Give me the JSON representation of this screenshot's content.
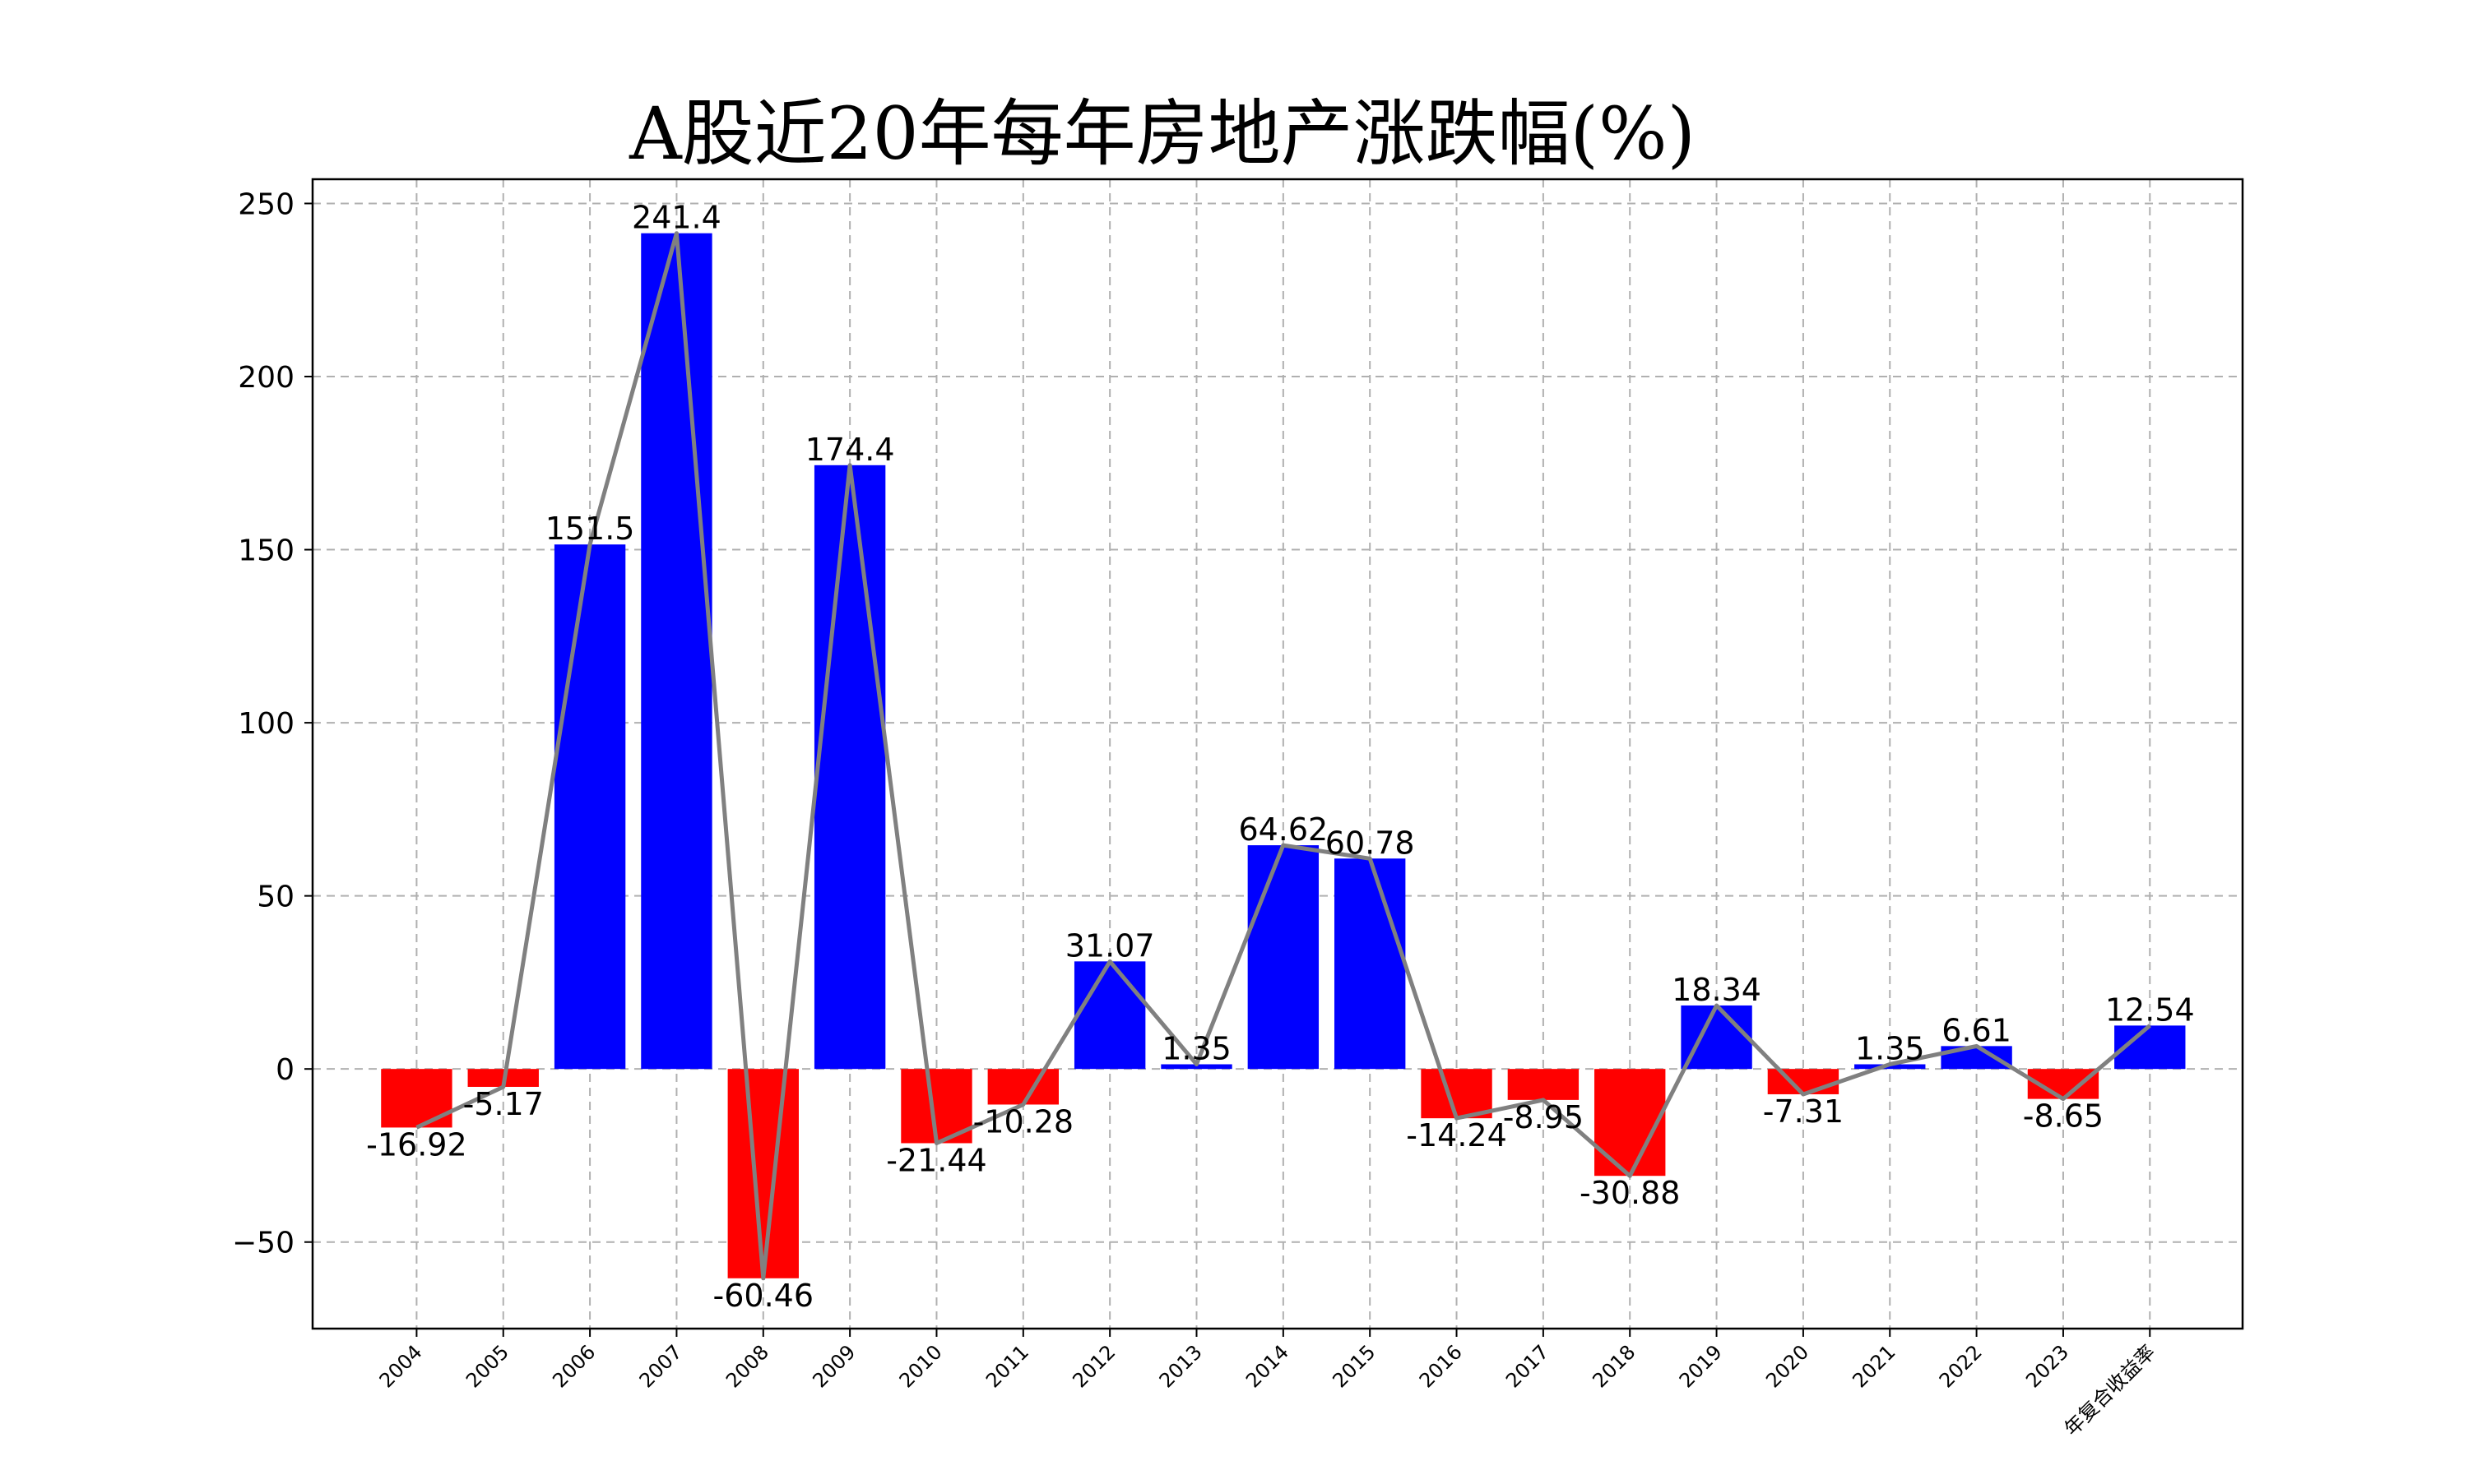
{
  "chart_data": {
    "type": "bar",
    "title": "A股近20年每年房地产涨跌幅(%)",
    "xlabel": "",
    "ylabel": "",
    "categories": [
      "2004",
      "2005",
      "2006",
      "2007",
      "2008",
      "2009",
      "2010",
      "2011",
      "2012",
      "2013",
      "2014",
      "2015",
      "2016",
      "2017",
      "2018",
      "2019",
      "2020",
      "2021",
      "2022",
      "2023",
      "年复合收益率"
    ],
    "values": [
      -16.92,
      -5.17,
      151.5,
      241.4,
      -60.46,
      174.4,
      -21.44,
      -10.28,
      31.07,
      1.35,
      64.62,
      60.78,
      -14.24,
      -8.95,
      -30.88,
      18.34,
      -7.31,
      1.35,
      6.61,
      -8.65,
      12.54
    ],
    "value_labels": [
      "-16.92",
      "-5.17",
      "151.5",
      "241.4",
      "-60.46",
      "174.4",
      "-21.44",
      "-10.28",
      "31.07",
      "1.35",
      "64.62",
      "60.78",
      "-14.24",
      "-8.95",
      "-30.88",
      "18.34",
      "-7.31",
      "1.35",
      "6.61",
      "-8.65",
      "12.54"
    ],
    "yticks": [
      -50,
      0,
      50,
      100,
      150,
      200,
      250
    ],
    "ytick_labels": [
      "−50",
      "0",
      "50",
      "100",
      "150",
      "200",
      "250"
    ],
    "ylim": [
      -75,
      257
    ],
    "grid": true,
    "overlay": "line connecting the top of each bar",
    "colors": {
      "positive": "#0000ff",
      "negative": "#ff0000",
      "line": "#808080",
      "grid": "#b0b0b0"
    }
  }
}
